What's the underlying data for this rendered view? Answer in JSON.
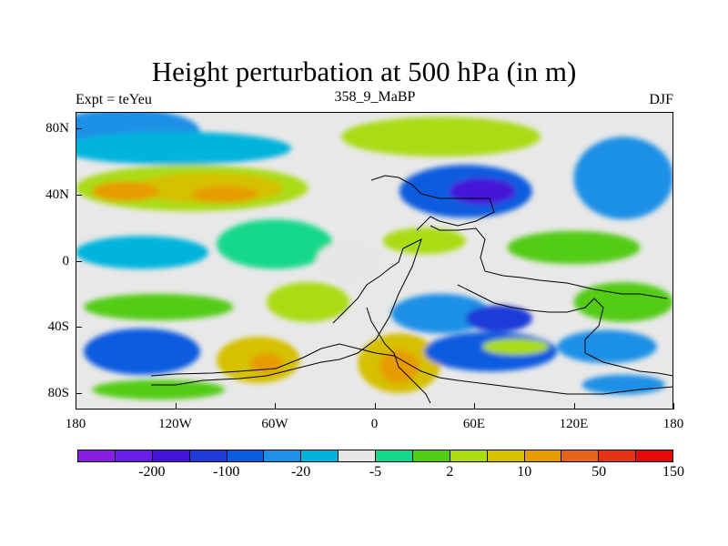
{
  "title": "Height perturbation at 500 hPa (in m)",
  "subtitle_left": "Expt = teYeu",
  "subtitle_center": "358_9_MaBP",
  "subtitle_right": "DJF",
  "axes": {
    "lat_ticks": [
      "80N",
      "40N",
      "0",
      "40S",
      "80S"
    ],
    "lat_values": [
      80,
      40,
      0,
      -40,
      -80
    ],
    "lon_ticks": [
      "180",
      "120W",
      "60W",
      "0",
      "60E",
      "120E",
      "180"
    ],
    "lon_values": [
      -180,
      -120,
      -60,
      0,
      60,
      120,
      180
    ],
    "lon_range": [
      -180,
      180
    ],
    "lat_range": [
      -90,
      90
    ]
  },
  "colorbar": {
    "colors": [
      "#8a1ee0",
      "#6a1ee8",
      "#4414d8",
      "#1f3ad8",
      "#0a5ce0",
      "#1e90e6",
      "#00b4dc",
      "#e6e6e6",
      "#14d88a",
      "#52cc14",
      "#aadc14",
      "#d6c000",
      "#e69c00",
      "#e6641e",
      "#e63214",
      "#e60a0a"
    ],
    "labels": [
      "-200",
      "-100",
      "-20",
      "-5",
      "2",
      "10",
      "50",
      "150"
    ]
  },
  "field_blobs": [
    {
      "lon": -150,
      "lat": 78,
      "rx": 45,
      "ry": 14,
      "level": 5
    },
    {
      "lon": -120,
      "lat": 68,
      "rx": 70,
      "ry": 10,
      "level": 6
    },
    {
      "lon": -110,
      "lat": 44,
      "rx": 70,
      "ry": 14,
      "level": 10
    },
    {
      "lon": -100,
      "lat": 44,
      "rx": 45,
      "ry": 9,
      "level": 11
    },
    {
      "lon": -150,
      "lat": 42,
      "rx": 20,
      "ry": 6,
      "level": 12
    },
    {
      "lon": -90,
      "lat": 40,
      "rx": 20,
      "ry": 5,
      "level": 12
    },
    {
      "lon": 40,
      "lat": 75,
      "rx": 60,
      "ry": 12,
      "level": 10
    },
    {
      "lon": 55,
      "lat": 42,
      "rx": 40,
      "ry": 16,
      "level": 4
    },
    {
      "lon": 65,
      "lat": 42,
      "rx": 20,
      "ry": 8,
      "level": 2
    },
    {
      "lon": 150,
      "lat": 50,
      "rx": 30,
      "ry": 25,
      "level": 5
    },
    {
      "lon": -140,
      "lat": 5,
      "rx": 40,
      "ry": 10,
      "level": 6
    },
    {
      "lon": -60,
      "lat": 10,
      "rx": 35,
      "ry": 15,
      "level": 8
    },
    {
      "lon": -15,
      "lat": 0,
      "rx": 20,
      "ry": 12,
      "level": 7
    },
    {
      "lon": 30,
      "lat": 12,
      "rx": 25,
      "ry": 8,
      "level": 10
    },
    {
      "lon": 120,
      "lat": 8,
      "rx": 40,
      "ry": 10,
      "level": 9
    },
    {
      "lon": -130,
      "lat": -28,
      "rx": 45,
      "ry": 8,
      "level": 9
    },
    {
      "lon": -40,
      "lat": -25,
      "rx": 25,
      "ry": 12,
      "level": 10
    },
    {
      "lon": 40,
      "lat": -32,
      "rx": 30,
      "ry": 12,
      "level": 5
    },
    {
      "lon": 75,
      "lat": -35,
      "rx": 20,
      "ry": 8,
      "level": 3
    },
    {
      "lon": 150,
      "lat": -25,
      "rx": 30,
      "ry": 12,
      "level": 9
    },
    {
      "lon": -140,
      "lat": -55,
      "rx": 35,
      "ry": 14,
      "level": 4
    },
    {
      "lon": -70,
      "lat": -60,
      "rx": 25,
      "ry": 14,
      "level": 11
    },
    {
      "lon": -65,
      "lat": -62,
      "rx": 10,
      "ry": 6,
      "level": 12
    },
    {
      "lon": 15,
      "lat": -62,
      "rx": 25,
      "ry": 18,
      "level": 11
    },
    {
      "lon": 15,
      "lat": -64,
      "rx": 12,
      "ry": 10,
      "level": 12
    },
    {
      "lon": 70,
      "lat": -55,
      "rx": 40,
      "ry": 12,
      "level": 4
    },
    {
      "lon": 85,
      "lat": -52,
      "rx": 20,
      "ry": 5,
      "level": 10
    },
    {
      "lon": 140,
      "lat": -52,
      "rx": 30,
      "ry": 10,
      "level": 5
    },
    {
      "lon": -130,
      "lat": -78,
      "rx": 40,
      "ry": 6,
      "level": 9
    },
    {
      "lon": 150,
      "lat": -75,
      "rx": 25,
      "ry": 6,
      "level": 5
    }
  ]
}
